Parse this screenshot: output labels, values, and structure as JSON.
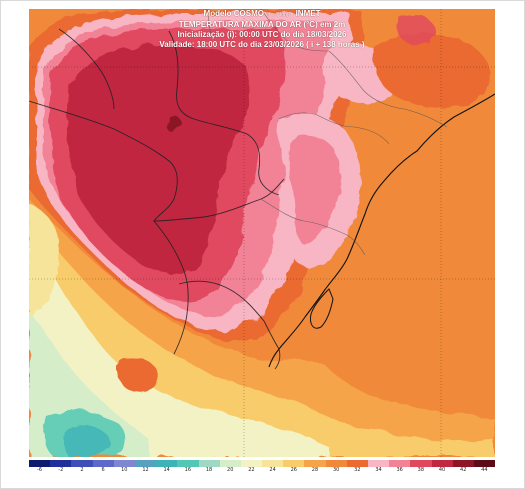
{
  "header": {
    "model_name": "Modelo COSMO",
    "model_resolution": "(7 x 7 km)",
    "model_org": "- INMET",
    "variable": "TEMPERATURA MÁXIMA DO AR (°C) em 2m",
    "init": "Inicialização (i): 00:00 UTC do dia 18/03/2026",
    "valid": "Validade: 18:00 UTC do dia 23/03/2026 ( i + 138 horas )"
  },
  "colorbar": {
    "labels": [
      "-6",
      "-2",
      "2",
      "6",
      "10",
      "12",
      "14",
      "16",
      "18",
      "20",
      "22",
      "24",
      "26",
      "28",
      "30",
      "32",
      "34",
      "36",
      "38",
      "40",
      "42",
      "44"
    ],
    "colors": [
      "#0d1a6e",
      "#1f2f9c",
      "#3e4fb8",
      "#5b6ac8",
      "#7f86d2",
      "#57a0c0",
      "#3cb3b6",
      "#52c7b4",
      "#9ed9c4",
      "#d5edc9",
      "#f2f2c4",
      "#f6e49a",
      "#f8cc6a",
      "#f6a44a",
      "#f08a3a",
      "#ea6a32",
      "#f8b6c4",
      "#f28296",
      "#e0485e",
      "#c02840",
      "#8c1526",
      "#5e0b18"
    ]
  }
}
